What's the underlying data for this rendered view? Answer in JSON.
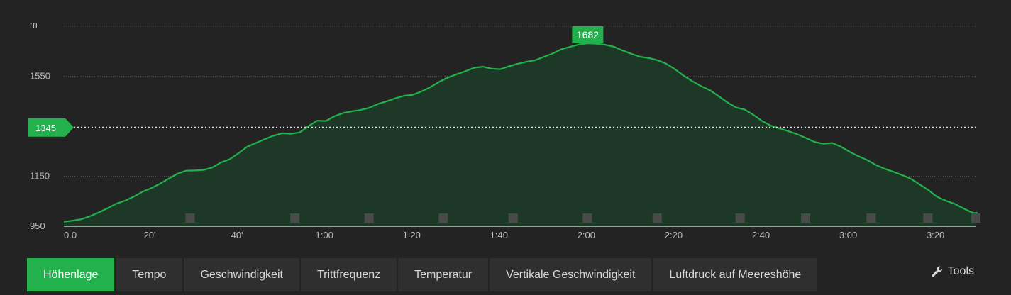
{
  "colors": {
    "background": "#232323",
    "line": "#22b14c",
    "area": "#1f3a28",
    "grid": "#5a5a5a",
    "tab_active": "#22b14c",
    "tab_inactive": "#2f2f2f"
  },
  "chart_data": {
    "type": "area",
    "title": "",
    "ylabel": "m",
    "xlabel": "",
    "ylim": [
      950,
      1750
    ],
    "xlim": [
      0,
      209
    ],
    "y_ticks": [
      {
        "value": 950,
        "label": "950"
      },
      {
        "value": 1150,
        "label": "1150"
      },
      {
        "value": 1550,
        "label": "1550"
      }
    ],
    "x_ticks": [
      {
        "value": 0,
        "label": "0.0"
      },
      {
        "value": 20,
        "label": "20'"
      },
      {
        "value": 40,
        "label": "40'"
      },
      {
        "value": 60,
        "label": "1:00"
      },
      {
        "value": 80,
        "label": "1:20"
      },
      {
        "value": 100,
        "label": "1:40"
      },
      {
        "value": 120,
        "label": "2:00"
      },
      {
        "value": 140,
        "label": "2:20"
      },
      {
        "value": 160,
        "label": "2:40"
      },
      {
        "value": 180,
        "label": "3:00"
      },
      {
        "value": 200,
        "label": "3:20"
      }
    ],
    "series": [
      {
        "x": [
          0,
          2,
          4,
          6,
          8,
          10,
          12,
          14,
          16,
          18,
          20,
          22,
          24,
          26,
          28,
          30,
          32,
          34,
          36,
          38,
          40,
          42,
          44,
          46,
          48,
          50,
          52,
          54,
          56,
          58,
          60,
          62,
          64,
          66,
          68,
          70,
          72,
          74,
          76,
          78,
          80,
          82,
          84,
          86,
          88,
          90,
          92,
          94,
          96,
          98,
          100,
          102,
          104,
          106,
          108,
          110,
          112,
          114,
          116,
          118,
          120,
          122,
          124,
          126,
          128,
          130,
          132,
          134,
          136,
          138,
          140,
          142,
          144,
          146,
          148,
          150,
          152,
          154,
          156,
          158,
          160,
          162,
          164,
          166,
          168,
          170,
          172,
          174,
          176,
          178,
          180,
          182,
          184,
          186,
          188,
          190,
          192,
          194,
          196,
          198,
          200,
          202,
          204,
          206,
          208,
          209
        ],
        "values": [
          968,
          972,
          978,
          990,
          1005,
          1022,
          1040,
          1052,
          1068,
          1088,
          1102,
          1120,
          1140,
          1160,
          1172,
          1173,
          1175,
          1185,
          1205,
          1218,
          1242,
          1268,
          1283,
          1298,
          1312,
          1322,
          1320,
          1325,
          1350,
          1372,
          1371,
          1390,
          1403,
          1410,
          1415,
          1424,
          1439,
          1450,
          1462,
          1472,
          1476,
          1490,
          1507,
          1528,
          1545,
          1558,
          1570,
          1584,
          1588,
          1580,
          1578,
          1590,
          1600,
          1608,
          1614,
          1628,
          1641,
          1658,
          1668,
          1677,
          1682,
          1680,
          1676,
          1668,
          1653,
          1640,
          1628,
          1623,
          1614,
          1600,
          1578,
          1552,
          1530,
          1510,
          1494,
          1470,
          1445,
          1425,
          1416,
          1395,
          1370,
          1352,
          1341,
          1330,
          1318,
          1303,
          1287,
          1280,
          1283,
          1268,
          1248,
          1230,
          1215,
          1195,
          1180,
          1168,
          1155,
          1140,
          1118,
          1095,
          1068,
          1052,
          1040,
          1022,
          1005,
          1000
        ]
      }
    ],
    "annotations": {
      "peak_label": "1682",
      "peak_x": 120,
      "peak_value": 1682,
      "reference_label": "1345",
      "reference_value": 1345
    },
    "grid": true
  },
  "tabs": [
    {
      "label": "Höhenlage",
      "active": true
    },
    {
      "label": "Tempo",
      "active": false
    },
    {
      "label": "Geschwindigkeit",
      "active": false
    },
    {
      "label": "Trittfrequenz",
      "active": false
    },
    {
      "label": "Temperatur",
      "active": false
    },
    {
      "label": "Vertikale Geschwindigkeit",
      "active": false
    },
    {
      "label": "Luftdruck auf Meereshöhe",
      "active": false
    }
  ],
  "tools": {
    "label": "Tools",
    "icon": "wrench-icon"
  }
}
